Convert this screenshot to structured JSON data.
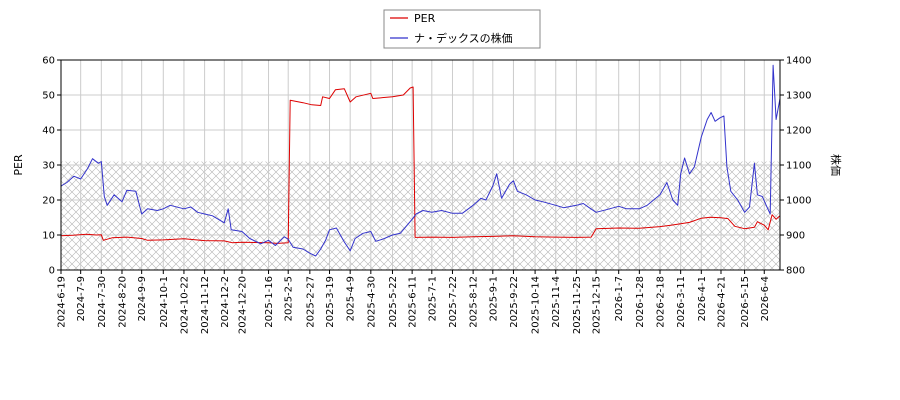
{
  "chart_data": {
    "type": "line",
    "legend": {
      "placement": "top-center",
      "entries": [
        {
          "label": "PER",
          "color": "#dd0000"
        },
        {
          "label": "ナ・デックスの株価",
          "color": "#3333cc"
        }
      ]
    },
    "ylabel_left": "PER",
    "ylabel_right": "株価",
    "ylim_left": [
      0,
      60
    ],
    "ylim_right": [
      800,
      1400
    ],
    "yticks_left": [
      "0",
      "10",
      "20",
      "30",
      "40",
      "50",
      "60"
    ],
    "yticks_right": [
      "800",
      "900",
      "1000",
      "1100",
      "1200",
      "1300",
      "1400"
    ],
    "grid": true,
    "shaded_band": {
      "axis": "left",
      "from": 0,
      "to": 31,
      "pattern": "crosshatch"
    },
    "x_range": [
      "2024-06-19",
      "2026-06-20"
    ],
    "x_tick_labels": [
      "2024-6-19",
      "2024-7-9",
      "2024-7-30",
      "2024-8-20",
      "2024-9-9",
      "2024-10-1",
      "2024-10-22",
      "2024-11-12",
      "2024-12-2",
      "2024-12-20",
      "2025-1-16",
      "2025-2-5",
      "2025-2-27",
      "2025-3-19",
      "2025-4-9",
      "2025-4-30",
      "2025-5-22",
      "2025-6-11",
      "2025-7-1",
      "2025-7-22",
      "2025-8-12",
      "2025-9-1",
      "2025-9-22",
      "2025-10-14",
      "2025-11-4",
      "2025-11-25",
      "2025-12-15",
      "2026-1-7",
      "2026-1-28",
      "2026-2-18",
      "2026-3-11",
      "2026-4-1",
      "2026-4-21",
      "2026-5-15",
      "2026-6-4"
    ],
    "series": [
      {
        "name": "PER",
        "axis": "left",
        "color": "#dd0000",
        "points": [
          [
            "2024-06-19",
            9.8
          ],
          [
            "2024-07-01",
            9.9
          ],
          [
            "2024-07-15",
            10.2
          ],
          [
            "2024-07-25",
            10.0
          ],
          [
            "2024-07-30",
            10.1
          ],
          [
            "2024-08-01",
            8.5
          ],
          [
            "2024-08-10",
            9.2
          ],
          [
            "2024-08-25",
            9.4
          ],
          [
            "2024-09-09",
            9.0
          ],
          [
            "2024-09-15",
            8.5
          ],
          [
            "2024-10-01",
            8.6
          ],
          [
            "2024-10-22",
            8.9
          ],
          [
            "2024-11-12",
            8.4
          ],
          [
            "2024-12-02",
            8.3
          ],
          [
            "2024-12-10",
            7.8
          ],
          [
            "2024-12-20",
            7.9
          ],
          [
            "2025-01-16",
            7.8
          ],
          [
            "2025-01-25",
            7.6
          ],
          [
            "2025-02-05",
            7.8
          ],
          [
            "2025-02-07",
            48.5
          ],
          [
            "2025-02-20",
            47.8
          ],
          [
            "2025-03-01",
            47.2
          ],
          [
            "2025-03-10",
            47.0
          ],
          [
            "2025-03-12",
            49.5
          ],
          [
            "2025-03-19",
            49.0
          ],
          [
            "2025-03-25",
            51.5
          ],
          [
            "2025-04-03",
            51.8
          ],
          [
            "2025-04-09",
            48.0
          ],
          [
            "2025-04-15",
            49.5
          ],
          [
            "2025-04-30",
            50.5
          ],
          [
            "2025-05-02",
            49.0
          ],
          [
            "2025-05-22",
            49.5
          ],
          [
            "2025-06-02",
            50.0
          ],
          [
            "2025-06-09",
            52.0
          ],
          [
            "2025-06-12",
            52.3
          ],
          [
            "2025-06-14",
            9.3
          ],
          [
            "2025-07-01",
            9.4
          ],
          [
            "2025-07-22",
            9.3
          ],
          [
            "2025-08-12",
            9.5
          ],
          [
            "2025-09-01",
            9.6
          ],
          [
            "2025-09-22",
            9.8
          ],
          [
            "2025-10-14",
            9.5
          ],
          [
            "2025-11-04",
            9.4
          ],
          [
            "2025-11-25",
            9.3
          ],
          [
            "2025-12-10",
            9.4
          ],
          [
            "2025-12-15",
            11.8
          ],
          [
            "2026-01-07",
            12.0
          ],
          [
            "2026-01-28",
            11.9
          ],
          [
            "2026-02-18",
            12.4
          ],
          [
            "2026-03-01",
            12.8
          ],
          [
            "2026-03-11",
            13.2
          ],
          [
            "2026-03-20",
            13.6
          ],
          [
            "2026-04-01",
            14.8
          ],
          [
            "2026-04-10",
            15.1
          ],
          [
            "2026-04-21",
            14.9
          ],
          [
            "2026-04-28",
            14.7
          ],
          [
            "2026-05-05",
            12.5
          ],
          [
            "2026-05-15",
            11.8
          ],
          [
            "2026-05-25",
            12.2
          ],
          [
            "2026-05-28",
            13.8
          ],
          [
            "2026-06-04",
            12.8
          ],
          [
            "2026-06-08",
            11.5
          ],
          [
            "2026-06-12",
            15.8
          ],
          [
            "2026-06-16",
            14.5
          ],
          [
            "2026-06-20",
            15.5
          ]
        ]
      },
      {
        "name": "ナ・デックスの株価",
        "axis": "right",
        "color": "#3333cc",
        "points": [
          [
            "2024-06-19",
            1040
          ],
          [
            "2024-06-25",
            1050
          ],
          [
            "2024-07-02",
            1068
          ],
          [
            "2024-07-09",
            1060
          ],
          [
            "2024-07-16",
            1090
          ],
          [
            "2024-07-21",
            1118
          ],
          [
            "2024-07-27",
            1105
          ],
          [
            "2024-07-30",
            1110
          ],
          [
            "2024-08-02",
            1010
          ],
          [
            "2024-08-05",
            985
          ],
          [
            "2024-08-12",
            1015
          ],
          [
            "2024-08-20",
            995
          ],
          [
            "2024-08-25",
            1028
          ],
          [
            "2024-09-03",
            1025
          ],
          [
            "2024-09-09",
            960
          ],
          [
            "2024-09-15",
            975
          ],
          [
            "2024-09-25",
            970
          ],
          [
            "2024-10-01",
            975
          ],
          [
            "2024-10-08",
            985
          ],
          [
            "2024-10-22",
            975
          ],
          [
            "2024-10-29",
            980
          ],
          [
            "2024-11-05",
            965
          ],
          [
            "2024-11-12",
            960
          ],
          [
            "2024-11-20",
            955
          ],
          [
            "2024-12-02",
            935
          ],
          [
            "2024-12-06",
            975
          ],
          [
            "2024-12-09",
            915
          ],
          [
            "2024-12-20",
            910
          ],
          [
            "2024-12-28",
            890
          ],
          [
            "2025-01-08",
            875
          ],
          [
            "2025-01-16",
            885
          ],
          [
            "2025-01-23",
            870
          ],
          [
            "2025-02-01",
            895
          ],
          [
            "2025-02-05",
            888
          ],
          [
            "2025-02-10",
            865
          ],
          [
            "2025-02-20",
            860
          ],
          [
            "2025-02-27",
            848
          ],
          [
            "2025-03-05",
            840
          ],
          [
            "2025-03-10",
            860
          ],
          [
            "2025-03-15",
            885
          ],
          [
            "2025-03-19",
            915
          ],
          [
            "2025-03-26",
            920
          ],
          [
            "2025-04-03",
            880
          ],
          [
            "2025-04-09",
            855
          ],
          [
            "2025-04-14",
            890
          ],
          [
            "2025-04-22",
            905
          ],
          [
            "2025-04-30",
            910
          ],
          [
            "2025-05-05",
            882
          ],
          [
            "2025-05-12",
            888
          ],
          [
            "2025-05-22",
            900
          ],
          [
            "2025-05-30",
            905
          ],
          [
            "2025-06-05",
            925
          ],
          [
            "2025-06-11",
            945
          ],
          [
            "2025-06-15",
            960
          ],
          [
            "2025-06-22",
            970
          ],
          [
            "2025-07-01",
            965
          ],
          [
            "2025-07-11",
            970
          ],
          [
            "2025-07-22",
            962
          ],
          [
            "2025-08-01",
            962
          ],
          [
            "2025-08-12",
            985
          ],
          [
            "2025-08-20",
            1005
          ],
          [
            "2025-08-25",
            1000
          ],
          [
            "2025-09-01",
            1040
          ],
          [
            "2025-09-05",
            1075
          ],
          [
            "2025-09-10",
            1005
          ],
          [
            "2025-09-18",
            1045
          ],
          [
            "2025-09-22",
            1055
          ],
          [
            "2025-09-26",
            1025
          ],
          [
            "2025-10-05",
            1015
          ],
          [
            "2025-10-14",
            1000
          ],
          [
            "2025-10-22",
            995
          ],
          [
            "2025-11-04",
            985
          ],
          [
            "2025-11-12",
            978
          ],
          [
            "2025-11-25",
            985
          ],
          [
            "2025-12-02",
            990
          ],
          [
            "2025-12-08",
            978
          ],
          [
            "2025-12-15",
            965
          ],
          [
            "2025-12-25",
            972
          ],
          [
            "2026-01-07",
            982
          ],
          [
            "2026-01-15",
            975
          ],
          [
            "2026-01-28",
            975
          ],
          [
            "2026-02-05",
            985
          ],
          [
            "2026-02-18",
            1015
          ],
          [
            "2026-02-25",
            1050
          ],
          [
            "2026-03-03",
            1000
          ],
          [
            "2026-03-08",
            985
          ],
          [
            "2026-03-11",
            1075
          ],
          [
            "2026-03-15",
            1120
          ],
          [
            "2026-03-20",
            1075
          ],
          [
            "2026-03-25",
            1095
          ],
          [
            "2026-04-01",
            1180
          ],
          [
            "2026-04-07",
            1230
          ],
          [
            "2026-04-11",
            1250
          ],
          [
            "2026-04-15",
            1225
          ],
          [
            "2026-04-20",
            1235
          ],
          [
            "2026-04-24",
            1240
          ],
          [
            "2026-04-27",
            1095
          ],
          [
            "2026-05-01",
            1025
          ],
          [
            "2026-05-08",
            1000
          ],
          [
            "2026-05-15",
            965
          ],
          [
            "2026-05-20",
            980
          ],
          [
            "2026-05-25",
            1105
          ],
          [
            "2026-05-28",
            1015
          ],
          [
            "2026-06-02",
            1010
          ],
          [
            "2026-06-06",
            985
          ],
          [
            "2026-06-10",
            960
          ],
          [
            "2026-06-13",
            1385
          ],
          [
            "2026-06-16",
            1230
          ],
          [
            "2026-06-20",
            1290
          ]
        ]
      }
    ]
  }
}
